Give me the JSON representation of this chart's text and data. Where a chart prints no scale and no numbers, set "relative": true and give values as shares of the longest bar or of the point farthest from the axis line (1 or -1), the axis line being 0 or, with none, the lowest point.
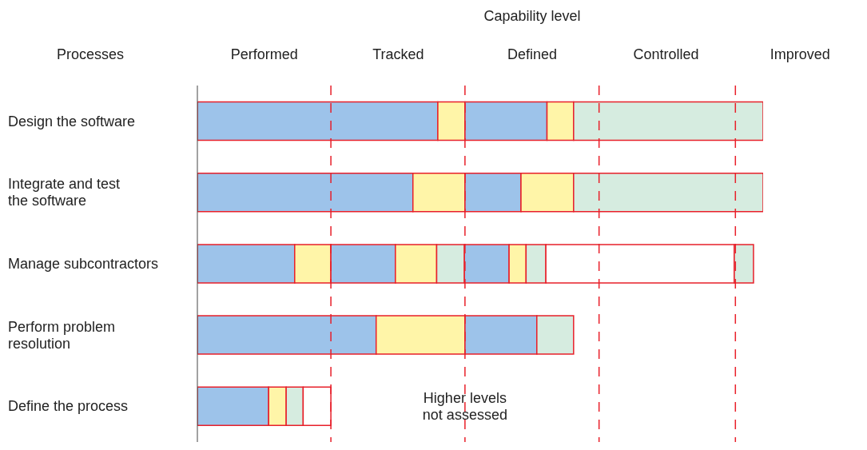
{
  "chart_data": {
    "type": "bar",
    "orientation": "horizontal",
    "stacked": true,
    "relative": true,
    "xlabel": "Capability level",
    "ylabel": "Processes",
    "categories": [
      "Design the software",
      "Integrate and test the software",
      "Manage subcontractors",
      "Perform problem resolution",
      "Define the process"
    ],
    "series": [
      {
        "values": [
          0.425,
          0.381,
          0.172,
          0.316,
          0.126
        ],
        "colors": [
          "#9dc3ea",
          "#9dc3ea",
          "#9dc3ea",
          "#9dc3ea",
          "#9dc3ea"
        ]
      },
      {
        "values": [
          0.048,
          0.092,
          0.064,
          0.157,
          0.031
        ],
        "colors": [
          "#fff5a8",
          "#fff5a8",
          "#fff5a8",
          "#fff5a8",
          "#fff5a8"
        ]
      },
      {
        "values": [
          0.145,
          0.099,
          0.114,
          0.127,
          0.03
        ],
        "colors": [
          "#9dc3ea",
          "#9dc3ea",
          "#9dc3ea",
          "#9dc3ea",
          "#d6ece0"
        ]
      },
      {
        "values": [
          0.047,
          0.093,
          0.073,
          0.065,
          0.049
        ],
        "colors": [
          "#fff5a8",
          "#fff5a8",
          "#fff5a8",
          "#d6ece0",
          "#ffffff"
        ]
      },
      {
        "values": [
          0.335,
          0.335,
          0.049,
          null,
          null
        ],
        "colors": [
          "#d6ece0",
          "#d6ece0",
          "#d6ece0",
          null,
          null
        ]
      },
      {
        "values": [
          null,
          null,
          0.079,
          null,
          null
        ],
        "colors": [
          null,
          null,
          "#9dc3ea",
          null,
          null
        ]
      },
      {
        "values": [
          null,
          null,
          0.03,
          null,
          null
        ],
        "colors": [
          null,
          null,
          "#fff5a8",
          null,
          null
        ]
      },
      {
        "values": [
          null,
          null,
          0.035,
          null,
          null
        ],
        "colors": [
          null,
          null,
          "#d6ece0",
          null,
          null
        ]
      },
      {
        "values": [
          null,
          null,
          0.333,
          null,
          null
        ],
        "colors": [
          null,
          null,
          "#ffffff",
          null,
          null
        ]
      },
      {
        "values": [
          null,
          null,
          0.034,
          null,
          null
        ],
        "colors": [
          null,
          null,
          "#d6ece0",
          null,
          null
        ]
      }
    ],
    "ref_lines": [
      {
        "axis": "x",
        "value": 0.236,
        "color": "#e8202a",
        "line_style": "dashed"
      },
      {
        "axis": "x",
        "value": 0.473,
        "color": "#e8202a",
        "line_style": "dashed"
      },
      {
        "axis": "x",
        "value": 0.71,
        "color": "#e8202a",
        "line_style": "dashed"
      },
      {
        "axis": "x",
        "value": 0.951,
        "color": "#e8202a",
        "line_style": "dashed"
      }
    ],
    "annotations": [
      "Performed",
      "Tracked",
      "Defined",
      "Controlled",
      "Improved",
      {
        "text": "Higher levels not assessed",
        "x": 0.473,
        "y": "Define the process"
      }
    ]
  }
}
